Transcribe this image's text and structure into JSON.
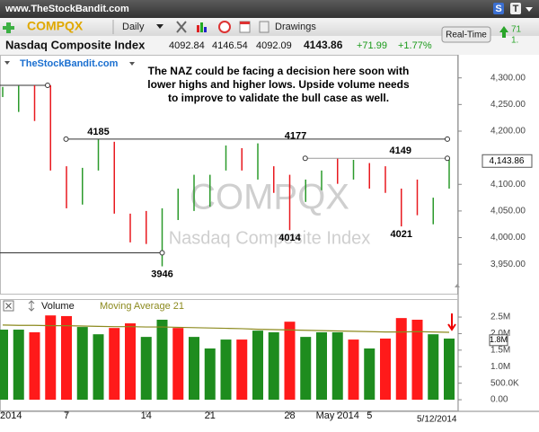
{
  "header": {
    "site": "www.TheStockBandit.com",
    "symbol": "COMPQX",
    "period": "Daily",
    "drawings": "Drawings",
    "btn_s": "S",
    "btn_t": "T"
  },
  "quote": {
    "name": "Nasdaq Composite Index",
    "open": 4092.84,
    "high": 4146.54,
    "low": 4092.09,
    "last": 4143.86,
    "change": "+71.99",
    "change_pct": "+1.77%",
    "realtime": "Real-Time",
    "side_top": "71",
    "side_bottom": "1."
  },
  "date_label": "5/12/2014",
  "chart_data": [
    {
      "type": "ohlc",
      "source": "TheStockBandit.com",
      "watermark": "COMPQX",
      "watermark_sub": "Nasdaq Composite Index",
      "note": [
        "The NAZ could be facing a decision here soon with",
        "lower highs and higher lows.  Upside volume needs",
        "to improve to validate the bull case as well."
      ],
      "high": [
        4283,
        4285,
        4286,
        4286,
        4134,
        4131,
        4185,
        4180,
        4045,
        4050,
        4055,
        4092,
        4118,
        4118,
        4173,
        4168,
        4177,
        4134,
        4118,
        4109,
        4126,
        4149,
        4146,
        4140,
        4134,
        4092,
        4109,
        4075,
        4150
      ],
      "low": [
        4264,
        4236,
        4219,
        4126,
        4055,
        4062,
        4126,
        4045,
        3991,
        3988,
        3946,
        4033,
        4050,
        4058,
        4126,
        4126,
        4109,
        4084,
        4014,
        4067,
        4089,
        4101,
        4109,
        4092,
        4084,
        4021,
        4042,
        4025,
        4092
      ],
      "colors": [
        "#2b9a2b",
        "#2b9a2b",
        "#e8191f",
        "#e8191f",
        "#e8191f",
        "#2b9a2b",
        "#2b9a2b",
        "#e8191f",
        "#e8191f",
        "#e8191f",
        "#2b9a2b",
        "#2b9a2b",
        "#2b9a2b",
        "#2b9a2b",
        "#2b9a2b",
        "#e8191f",
        "#2b9a2b",
        "#e8191f",
        "#e8191f",
        "#2b9a2b",
        "#2b9a2b",
        "#e8191f",
        "#2b9a2b",
        "#e8191f",
        "#e8191f",
        "#e8191f",
        "#e8191f",
        "#2b9a2b",
        "#2b9a2b"
      ],
      "ylim": [
        3898,
        4340
      ],
      "yticks": [
        {
          "value": 4300,
          "label": "4,300.00"
        },
        {
          "value": 4250,
          "label": "4,250.00"
        },
        {
          "value": 4200,
          "label": "4,200.00"
        },
        {
          "value": 4100,
          "label": "4,100.00"
        },
        {
          "value": 4050,
          "label": "4,050.00"
        },
        {
          "value": 4000,
          "label": "4,000.00"
        },
        {
          "value": 3950,
          "label": "3,950.00"
        }
      ],
      "last": {
        "value": 4143.86,
        "label": "4,143.86"
      },
      "annotations": [
        {
          "value": 4185,
          "at": "high",
          "line": "right"
        },
        {
          "value": 4177,
          "at": "high",
          "line": "none"
        },
        {
          "value": 4149,
          "at": "high",
          "line": "right"
        },
        {
          "value": 4014,
          "at": "low",
          "line": "none"
        },
        {
          "value": 4021,
          "at": "low",
          "line": "none"
        },
        {
          "value": 3946,
          "at": "low",
          "line": "left"
        }
      ]
    },
    {
      "type": "bar",
      "categories": [
        "2014",
        null,
        null,
        null,
        "7",
        null,
        null,
        null,
        null,
        "14",
        null,
        null,
        null,
        "21",
        null,
        null,
        null,
        null,
        "28",
        null,
        null,
        "May 2014",
        null,
        "5",
        null,
        null,
        null,
        null,
        null
      ],
      "series": [
        {
          "name": "Volume",
          "values": [
            2120000,
            2120000,
            2040000,
            2550000,
            2530000,
            2200000,
            1980000,
            2170000,
            2310000,
            1900000,
            2420000,
            2170000,
            1900000,
            1550000,
            1820000,
            1820000,
            2090000,
            2040000,
            2360000,
            1900000,
            2040000,
            2040000,
            1820000,
            1550000,
            1850000,
            2470000,
            2420000,
            1980000,
            1850000
          ],
          "colors": [
            "#1e8c1e",
            "#1e8c1e",
            "#ff1a1a",
            "#ff1a1a",
            "#ff1a1a",
            "#1e8c1e",
            "#1e8c1e",
            "#ff1a1a",
            "#ff1a1a",
            "#1e8c1e",
            "#1e8c1e",
            "#ff1a1a",
            "#1e8c1e",
            "#1e8c1e",
            "#1e8c1e",
            "#ff1a1a",
            "#1e8c1e",
            "#1e8c1e",
            "#ff1a1a",
            "#1e8c1e",
            "#1e8c1e",
            "#1e8c1e",
            "#ff1a1a",
            "#1e8c1e",
            "#ff1a1a",
            "#ff1a1a",
            "#ff1a1a",
            "#1e8c1e",
            "#1e8c1e"
          ]
        },
        {
          "name": "Moving Average 21",
          "type": "line",
          "color": "#8c8a1e",
          "values": [
            2260000,
            2250000,
            2250000,
            2240000,
            2240000,
            2230000,
            2220000,
            2210000,
            2210000,
            2200000,
            2200000,
            2190000,
            2180000,
            2170000,
            2160000,
            2150000,
            2130000,
            2120000,
            2110000,
            2100000,
            2090000,
            2080000,
            2070000,
            2060000,
            2050000,
            2050000,
            2060000,
            2050000,
            2040000
          ]
        }
      ],
      "ylim": [
        -270000,
        2990000
      ],
      "yticks": [
        {
          "value": 2500000,
          "label": "2.5M"
        },
        {
          "value": 2000000,
          "label": "2.0M"
        },
        {
          "value": 1500000,
          "label": "1.5M"
        },
        {
          "value": 1000000,
          "label": "1.0M"
        },
        {
          "value": 500000,
          "label": "500.0K"
        },
        {
          "value": 0,
          "label": "0.00"
        }
      ],
      "last": {
        "value": 1800000,
        "label": "1.8M"
      }
    }
  ]
}
